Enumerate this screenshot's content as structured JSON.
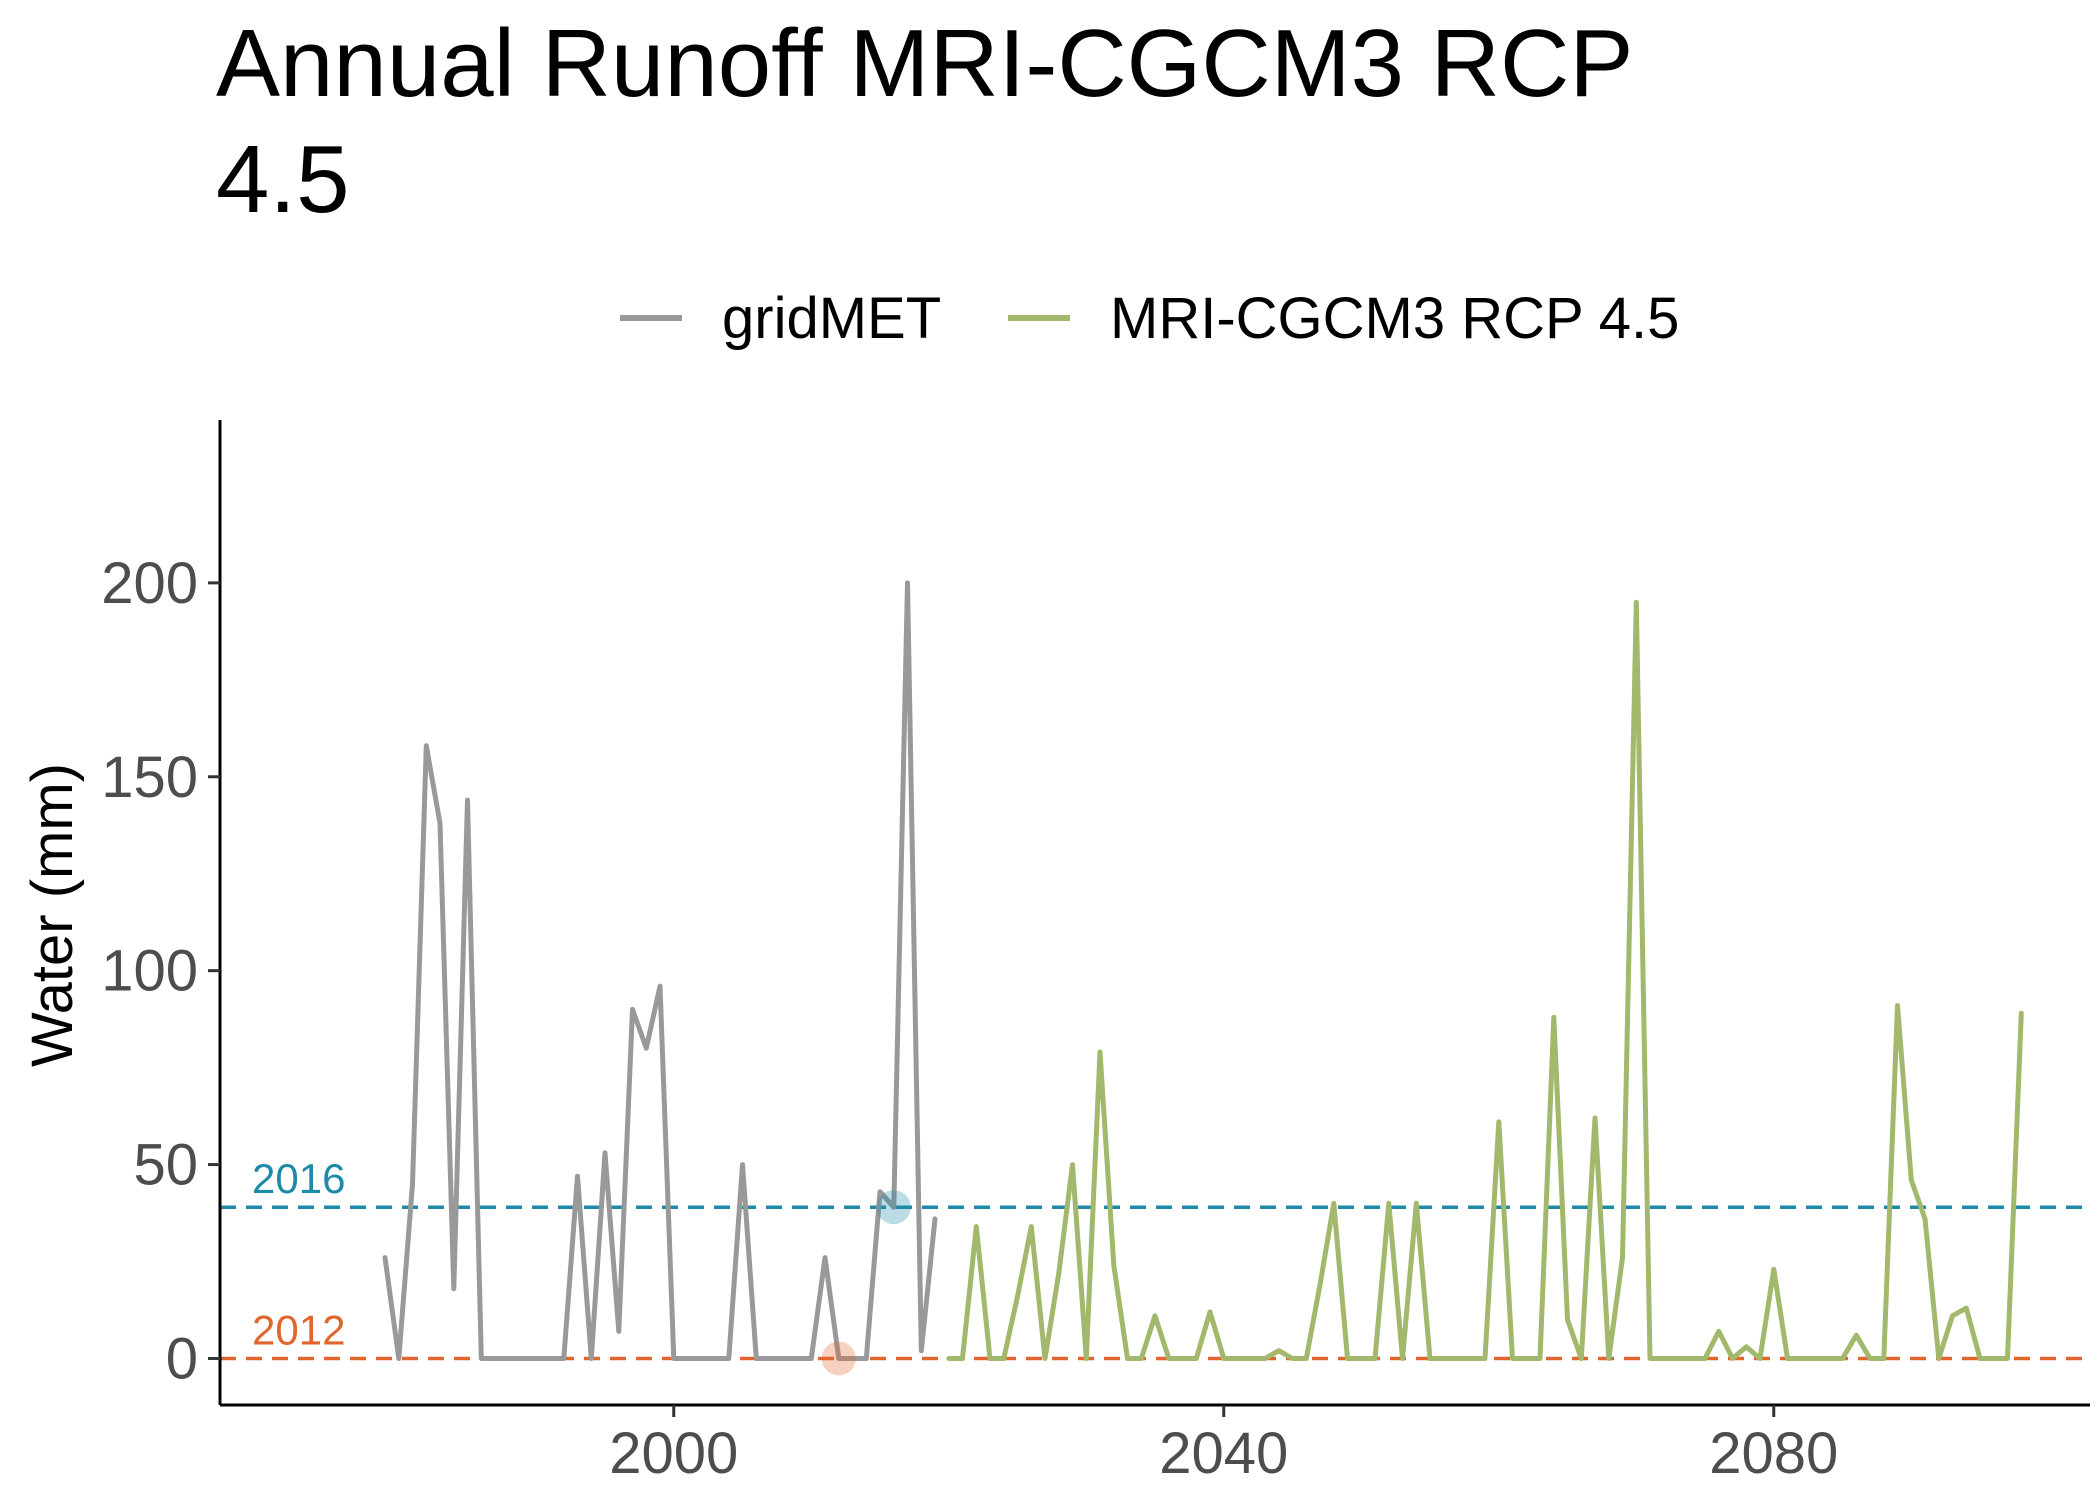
{
  "chart_data": {
    "type": "line",
    "title_line1": "Annual Runoff MRI-CGCM3 RCP",
    "title_line2": "4.5",
    "xlabel": "",
    "ylabel": "Water (mm)",
    "xlim": [
      1967,
      2103
    ],
    "ylim": [
      -12,
      242
    ],
    "x_ticks": [
      2000,
      2040,
      2080
    ],
    "y_ticks": [
      0,
      50,
      100,
      150,
      200
    ],
    "grid": false,
    "legend_position": "top",
    "series": [
      {
        "name": "gridMET",
        "color": "#999999",
        "x": [
          1979,
          1980,
          1981,
          1982,
          1983,
          1984,
          1985,
          1986,
          1987,
          1988,
          1989,
          1990,
          1991,
          1992,
          1993,
          1994,
          1995,
          1996,
          1997,
          1998,
          1999,
          2000,
          2001,
          2002,
          2003,
          2004,
          2005,
          2006,
          2007,
          2008,
          2009,
          2010,
          2011,
          2012,
          2013,
          2014,
          2015,
          2016,
          2017,
          2018,
          2019
        ],
        "values": [
          26,
          0,
          45,
          158,
          138,
          18,
          144,
          0,
          0,
          0,
          0,
          0,
          0,
          0,
          47,
          0,
          53,
          7,
          90,
          80,
          96,
          0,
          0,
          0,
          0,
          0,
          50,
          0,
          0,
          0,
          0,
          0,
          26,
          0,
          0,
          0,
          43,
          39,
          200,
          2,
          36
        ]
      },
      {
        "name": "MRI-CGCM3 RCP 4.5",
        "color": "#a2b86c",
        "x": [
          2020,
          2021,
          2022,
          2023,
          2024,
          2025,
          2026,
          2027,
          2028,
          2029,
          2030,
          2031,
          2032,
          2033,
          2034,
          2035,
          2036,
          2037,
          2038,
          2039,
          2040,
          2041,
          2042,
          2043,
          2044,
          2045,
          2046,
          2047,
          2048,
          2049,
          2050,
          2051,
          2052,
          2053,
          2054,
          2055,
          2056,
          2057,
          2058,
          2059,
          2060,
          2061,
          2062,
          2063,
          2064,
          2065,
          2066,
          2067,
          2068,
          2069,
          2070,
          2071,
          2072,
          2073,
          2074,
          2075,
          2076,
          2077,
          2078,
          2079,
          2080,
          2081,
          2082,
          2083,
          2084,
          2085,
          2086,
          2087,
          2088,
          2089,
          2090,
          2091,
          2092,
          2093,
          2094,
          2095,
          2096,
          2097,
          2098
        ],
        "values": [
          0,
          0,
          34,
          0,
          0,
          16,
          34,
          0,
          22,
          50,
          0,
          79,
          24,
          0,
          0,
          11,
          0,
          0,
          0,
          12,
          0,
          0,
          0,
          0,
          2,
          0,
          0,
          19,
          40,
          0,
          0,
          0,
          40,
          0,
          40,
          0,
          0,
          0,
          0,
          0,
          61,
          0,
          0,
          0,
          88,
          10,
          0,
          62,
          0,
          26,
          195,
          0,
          0,
          0,
          0,
          0,
          7,
          0,
          3,
          0,
          23,
          0,
          0,
          0,
          0,
          0,
          6,
          0,
          0,
          91,
          46,
          36,
          0,
          11,
          13,
          0,
          0,
          0,
          89
        ]
      }
    ],
    "reference_lines": [
      {
        "label": "2016",
        "value": 39,
        "color": "#1f8aa8",
        "marker_year": 2016
      },
      {
        "label": "2012",
        "value": 0,
        "color": "#e0662d",
        "marker_year": 2012
      }
    ]
  }
}
